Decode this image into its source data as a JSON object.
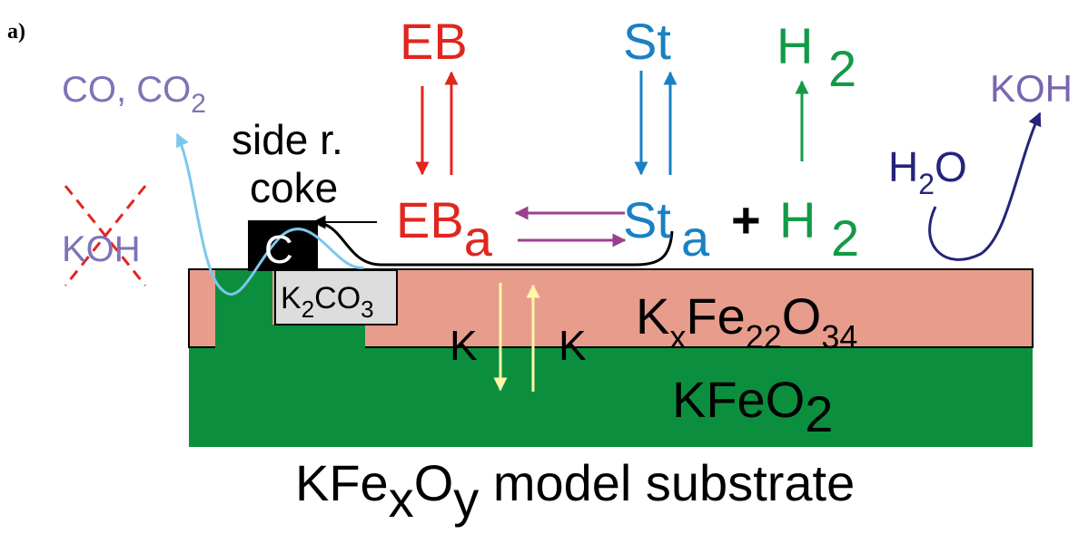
{
  "panel_label": "a)",
  "gas_products": {
    "text": "CO, CO",
    "sub": "2"
  },
  "side_reaction": {
    "line1": "side r.",
    "line2": "coke"
  },
  "blocked_species": "KOH",
  "coke_label": "C",
  "carbonate": {
    "k": "K",
    "k_sub": "2",
    "co": "CO",
    "co_sub": "3"
  },
  "eb_gas": "EB",
  "eb_adsorbed": {
    "text": "EB",
    "sub": "a"
  },
  "st_gas": "St",
  "st_adsorbed": {
    "text": "St",
    "sub": "a"
  },
  "plus": "+",
  "h2_gas": {
    "text": "H",
    "sub": "2"
  },
  "h2_adsorbed": {
    "text": "H",
    "sub": "2"
  },
  "water": {
    "h": "H",
    "sub": "2",
    "o": "O"
  },
  "koh_product": "KOH",
  "potassium_down": "K",
  "potassium_up": "K",
  "top_layer": {
    "k": "K",
    "k_sub": "x",
    "fe": "Fe",
    "fe_sub": "22",
    "o": "O",
    "o_sub": "34"
  },
  "bottom_layer": {
    "text": "KFeO",
    "sub": "2"
  },
  "substrate": {
    "kfe": "KFe",
    "x": "x",
    "o": "O",
    "y": "y",
    "rest": " model substrate"
  }
}
